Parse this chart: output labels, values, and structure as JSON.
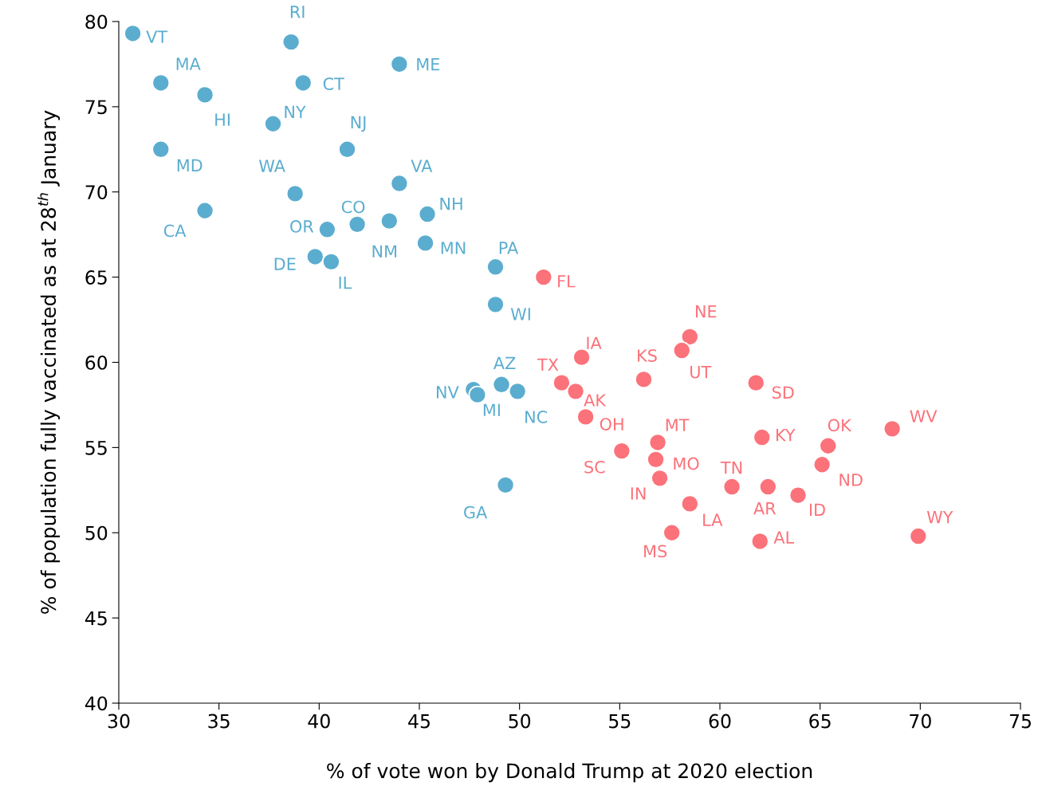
{
  "chart_data": {
    "type": "scatter",
    "xlabel": "% of vote won by Donald Trump at 2020 election",
    "ylabel": "% of population fully vaccinated as at 28$^{th}$ January",
    "xlim": [
      30,
      75
    ],
    "xticks": [
      30,
      35,
      40,
      45,
      50,
      55,
      60,
      65,
      70,
      75
    ],
    "ylim": [
      40,
      80
    ],
    "yticks": [
      40,
      45,
      50,
      55,
      60,
      65,
      70,
      75,
      80
    ],
    "grid": false,
    "legend": false,
    "marker": "circle",
    "series": [
      {
        "color": "#5badcf",
        "x": [
          30.7,
          32.1,
          34.3,
          32.1,
          34.3,
          38.6,
          39.2,
          37.7,
          41.4,
          38.8,
          40.4,
          41.9,
          39.8,
          40.6,
          43.5,
          44.0,
          44.0,
          45.4,
          45.3,
          48.8,
          48.8,
          49.1,
          47.7,
          47.9,
          49.9,
          49.3
        ],
        "values": [
          79.3,
          76.4,
          75.7,
          72.5,
          68.9,
          78.8,
          76.4,
          74.0,
          72.5,
          69.9,
          67.8,
          68.1,
          66.2,
          65.9,
          68.3,
          77.5,
          70.5,
          68.7,
          67.0,
          65.6,
          63.4,
          58.7,
          58.4,
          58.1,
          58.3,
          52.8
        ],
        "value_labels": [
          "VT",
          "MA",
          "HI",
          "MD",
          "CA",
          "RI",
          "CT",
          "NY",
          "NJ",
          "WA",
          "OR",
          "CO",
          "DE",
          "IL",
          "NM",
          "ME",
          "VA",
          "NH",
          "MN",
          "PA",
          "WI",
          "AZ",
          "NV",
          "MI",
          "NC",
          "GA"
        ]
      },
      {
        "color": "#fc727a",
        "x": [
          51.2,
          53.1,
          52.1,
          52.8,
          53.3,
          56.2,
          58.5,
          58.1,
          61.8,
          55.1,
          56.9,
          56.8,
          57.0,
          58.5,
          57.6,
          60.6,
          62.4,
          62.0,
          62.1,
          63.9,
          65.1,
          65.4,
          68.6,
          69.9
        ],
        "values": [
          65.0,
          60.3,
          58.8,
          58.3,
          56.8,
          59.0,
          61.5,
          60.7,
          58.8,
          54.8,
          55.3,
          54.3,
          53.2,
          51.7,
          50.0,
          52.7,
          52.7,
          49.5,
          55.6,
          52.2,
          54.0,
          55.1,
          56.1,
          49.8
        ],
        "value_labels": [
          "FL",
          "IA",
          "TX",
          "AK",
          "OH",
          "KS",
          "NE",
          "UT",
          "SD",
          "SC",
          "MT",
          "MO",
          "IN",
          "LA",
          "MS",
          "TN",
          "AR",
          "AL",
          "KY",
          "ID",
          "ND",
          "OK",
          "WV",
          "WY"
        ]
      }
    ]
  }
}
